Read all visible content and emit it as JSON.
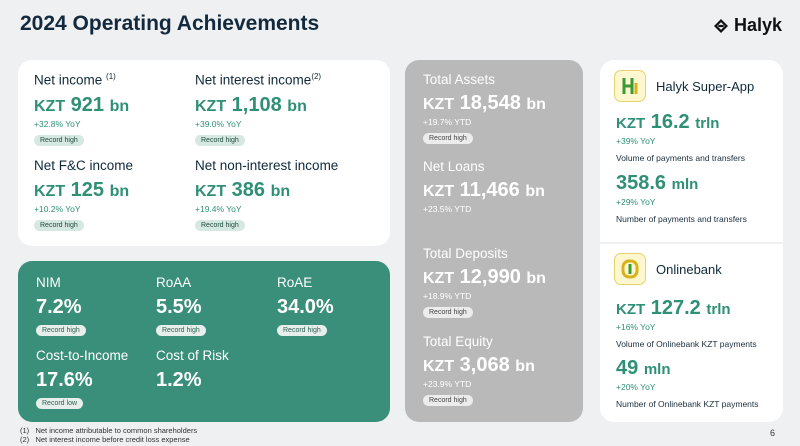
{
  "header": {
    "title": "2024 Operating Achievements",
    "logo_text": "Halyk"
  },
  "income": {
    "net_income": {
      "label": "Net income",
      "sup": "(1)",
      "currency": "KZT",
      "value": "921",
      "unit": "bn",
      "change": "+32.8% YoY",
      "badge": "Record high"
    },
    "net_interest_income": {
      "label": "Net interest income",
      "sup": "(2)",
      "currency": "KZT",
      "value": "1,108",
      "unit": "bn",
      "change": "+39.0% YoY",
      "badge": "Record high"
    },
    "net_fc_income": {
      "label": "Net F&C income",
      "currency": "KZT",
      "value": "125",
      "unit": "bn",
      "change": "+10.2% YoY",
      "badge": "Record high"
    },
    "net_non_interest_income": {
      "label": "Net non-interest income",
      "currency": "KZT",
      "value": "386",
      "unit": "bn",
      "change": "+19.4% YoY",
      "badge": "Record high"
    }
  },
  "ratios": {
    "nim": {
      "label": "NIM",
      "value": "7.2%",
      "badge": "Record high"
    },
    "roaa": {
      "label": "RoAA",
      "value": "5.5%",
      "badge": "Record high"
    },
    "roae": {
      "label": "RoAE",
      "value": "34.0%",
      "badge": "Record high"
    },
    "cti": {
      "label": "Cost-to-Income",
      "value": "17.6%",
      "badge": "Record low"
    },
    "cor": {
      "label": "Cost of Risk",
      "value": "1.2%"
    }
  },
  "balance": {
    "assets": {
      "label": "Total Assets",
      "currency": "KZT",
      "value": "18,548",
      "unit": "bn",
      "change": "+19.7% YTD",
      "badge": "Record high"
    },
    "loans": {
      "label": "Net Loans",
      "currency": "KZT",
      "value": "11,466",
      "unit": "bn",
      "change": "+23.5% YTD"
    },
    "deposits": {
      "label": "Total Deposits",
      "currency": "KZT",
      "value": "12,990",
      "unit": "bn",
      "change": "+18.9% YTD",
      "badge": "Record high"
    },
    "equity": {
      "label": "Total Equity",
      "currency": "KZT",
      "value": "3,068",
      "unit": "bn",
      "change": "+23.9% YTD",
      "badge": "Record high"
    }
  },
  "superapp": {
    "name": "Halyk Super-App",
    "m1": {
      "currency": "KZT",
      "value": "16.2",
      "unit": "trln",
      "change": "+39% YoY",
      "desc": "Volume of payments and transfers"
    },
    "m2": {
      "value": "358.6",
      "unit": "mln",
      "change": "+29% YoY",
      "desc": "Number of payments and transfers"
    }
  },
  "onlinebank": {
    "name": "Onlinebank",
    "m1": {
      "currency": "KZT",
      "value": "127.2",
      "unit": "trln",
      "change": "+16% YoY",
      "desc": "Volume of Onlinebank KZT payments"
    },
    "m2": {
      "value": "49",
      "unit": "mln",
      "change": "+20% YoY",
      "desc": "Number of Onlinebank KZT payments"
    }
  },
  "footnotes": {
    "f1_num": "(1)",
    "f1": "Net income attributable to common shareholders",
    "f2_num": "(2)",
    "f2": "Net interest income before credit loss expense"
  },
  "page_number": "6",
  "colors": {
    "accent": "#2f8f77",
    "ratio_card": "#3a8f7a",
    "balance_card": "#b9b9b9",
    "title": "#13293d"
  }
}
